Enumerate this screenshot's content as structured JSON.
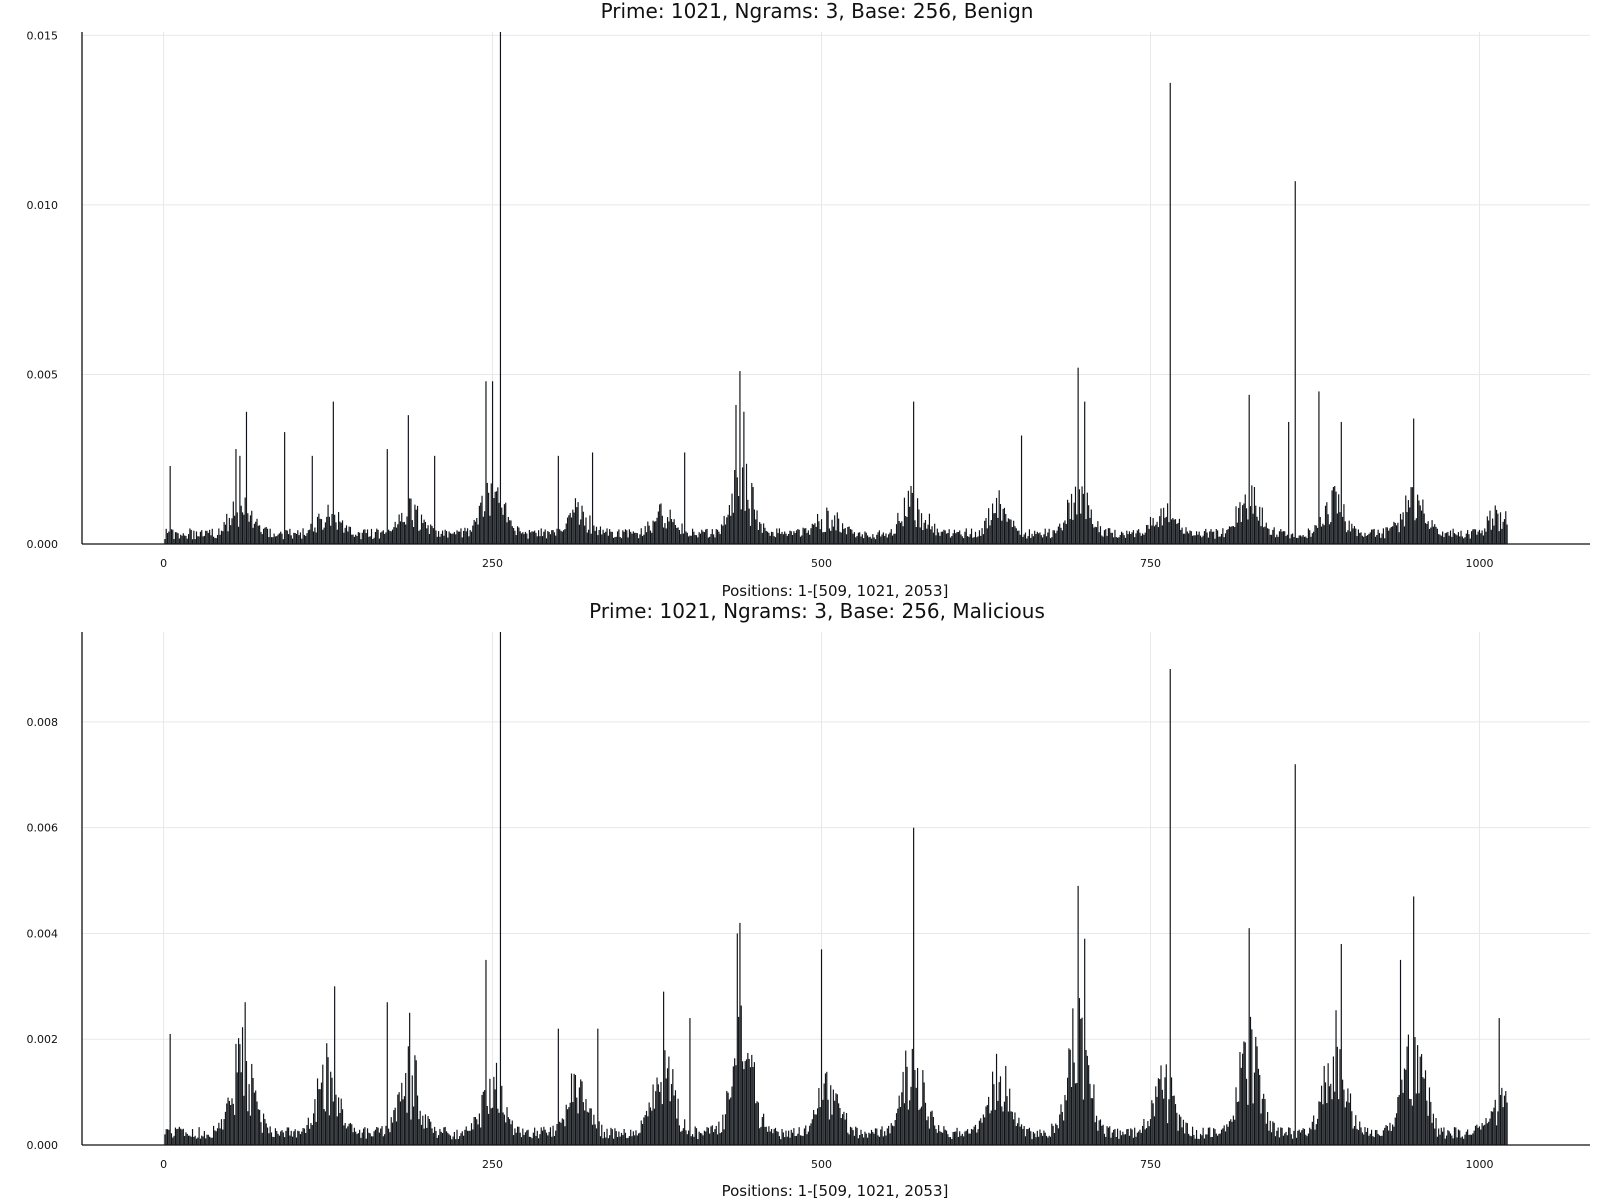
{
  "chart_data": [
    {
      "type": "bar",
      "title": "Prime: 1021, Ngrams: 3, Base: 256, Benign",
      "xlabel": "Positions: 1-[509, 1021, 2053]",
      "ylabel": "",
      "xlim": [
        -62,
        1084
      ],
      "ylim": [
        0,
        0.0151
      ],
      "xticks": [
        0,
        250,
        500,
        750,
        1000
      ],
      "xtick_labels": [
        "0",
        "250",
        "500",
        "750",
        "1000"
      ],
      "yticks": [
        0,
        0.005,
        0.01,
        0.015
      ],
      "ytick_labels": [
        "0.000",
        "0.005",
        "0.010",
        "0.015"
      ],
      "grid": true,
      "legend": "none",
      "bar_color": "#101418",
      "n_positions": 1021,
      "baseline": 0.0004,
      "clusters": [
        [
          60,
          0.0012
        ],
        [
          125,
          0.0008
        ],
        [
          188,
          0.0009
        ],
        [
          250,
          0.0018
        ],
        [
          315,
          0.0008
        ],
        [
          380,
          0.0008
        ],
        [
          440,
          0.002
        ],
        [
          505,
          0.0007
        ],
        [
          570,
          0.0013
        ],
        [
          635,
          0.001
        ],
        [
          695,
          0.0014
        ],
        [
          760,
          0.0009
        ],
        [
          825,
          0.0014
        ],
        [
          890,
          0.0013
        ],
        [
          950,
          0.0013
        ],
        [
          1015,
          0.0007
        ]
      ],
      "peaks": [
        [
          5,
          0.0023
        ],
        [
          55,
          0.0028
        ],
        [
          58,
          0.0026
        ],
        [
          63,
          0.0039
        ],
        [
          92,
          0.0033
        ],
        [
          113,
          0.0026
        ],
        [
          129,
          0.0042
        ],
        [
          170,
          0.0028
        ],
        [
          186,
          0.0038
        ],
        [
          206,
          0.0026
        ],
        [
          245,
          0.0048
        ],
        [
          250,
          0.0048
        ],
        [
          256,
          0.0152
        ],
        [
          300,
          0.0026
        ],
        [
          326,
          0.0027
        ],
        [
          396,
          0.0027
        ],
        [
          435,
          0.0041
        ],
        [
          438,
          0.0051
        ],
        [
          441,
          0.0039
        ],
        [
          570,
          0.0042
        ],
        [
          652,
          0.0032
        ],
        [
          695,
          0.0052
        ],
        [
          700,
          0.0042
        ],
        [
          765,
          0.0136
        ],
        [
          825,
          0.0044
        ],
        [
          855,
          0.0036
        ],
        [
          860,
          0.0107
        ],
        [
          878,
          0.0045
        ],
        [
          895,
          0.0036
        ],
        [
          950,
          0.0037
        ]
      ]
    },
    {
      "type": "bar",
      "title": "Prime: 1021, Ngrams: 3, Base: 256, Malicious",
      "xlabel": "Positions: 1-[509, 1021, 2053]",
      "ylabel": "",
      "xlim": [
        -62,
        1084
      ],
      "ylim": [
        0,
        0.0097
      ],
      "xticks": [
        0,
        250,
        500,
        750,
        1000
      ],
      "xtick_labels": [
        "0",
        "250",
        "500",
        "750",
        "1000"
      ],
      "yticks": [
        0,
        0.002,
        0.004,
        0.006,
        0.008
      ],
      "ytick_labels": [
        "0.000",
        "0.002",
        "0.004",
        "0.006",
        "0.008"
      ],
      "grid": true,
      "legend": "none",
      "bar_color": "#101418",
      "n_positions": 1021,
      "baseline": 0.0003,
      "clusters": [
        [
          60,
          0.0019
        ],
        [
          125,
          0.0014
        ],
        [
          188,
          0.0014
        ],
        [
          250,
          0.0012
        ],
        [
          315,
          0.0011
        ],
        [
          380,
          0.0015
        ],
        [
          440,
          0.0021
        ],
        [
          505,
          0.0012
        ],
        [
          570,
          0.0017
        ],
        [
          635,
          0.0015
        ],
        [
          695,
          0.0023
        ],
        [
          760,
          0.0011
        ],
        [
          825,
          0.0019
        ],
        [
          890,
          0.0021
        ],
        [
          950,
          0.0021
        ],
        [
          1015,
          0.0008
        ]
      ],
      "peaks": [
        [
          5,
          0.0021
        ],
        [
          62,
          0.0027
        ],
        [
          130,
          0.003
        ],
        [
          170,
          0.0027
        ],
        [
          187,
          0.0025
        ],
        [
          245,
          0.0035
        ],
        [
          256,
          0.0097
        ],
        [
          300,
          0.0022
        ],
        [
          330,
          0.0022
        ],
        [
          380,
          0.0029
        ],
        [
          400,
          0.0024
        ],
        [
          436,
          0.004
        ],
        [
          438,
          0.0042
        ],
        [
          500,
          0.0037
        ],
        [
          570,
          0.006
        ],
        [
          695,
          0.0049
        ],
        [
          700,
          0.0039
        ],
        [
          765,
          0.009
        ],
        [
          825,
          0.0041
        ],
        [
          860,
          0.0072
        ],
        [
          895,
          0.0038
        ],
        [
          940,
          0.0035
        ],
        [
          950,
          0.0047
        ],
        [
          1015,
          0.0024
        ]
      ]
    }
  ]
}
